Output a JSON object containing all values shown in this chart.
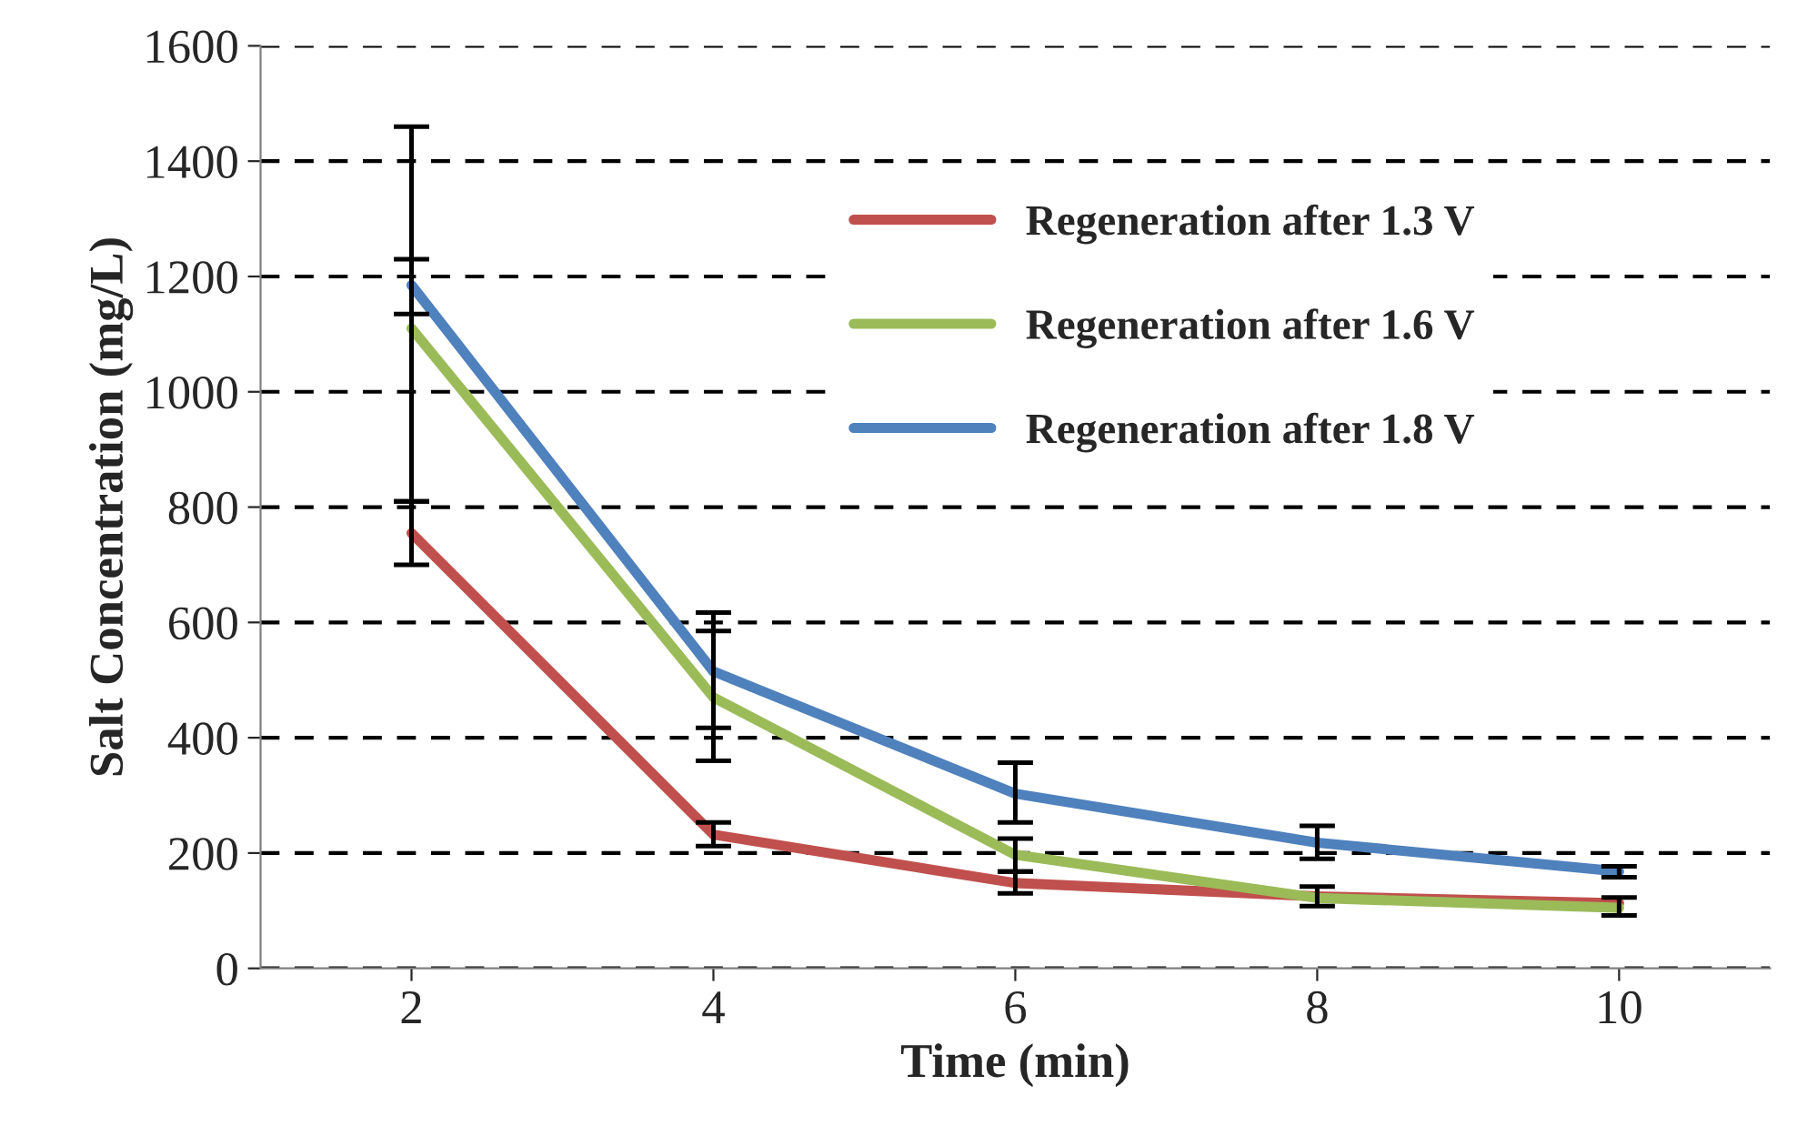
{
  "chart_data": {
    "type": "line",
    "xlabel": "Time (min)",
    "ylabel": "Salt Concentration (mg/L)",
    "categories": [
      "2",
      "4",
      "6",
      "8",
      "10"
    ],
    "series": [
      {
        "name": "Regeneration after 1.3 V",
        "color": "#c0504d",
        "values": [
          755,
          232,
          148,
          125,
          113
        ],
        "errors": [
          [
            700,
            810
          ],
          [
            212,
            253
          ],
          [
            130,
            168
          ],
          null,
          null
        ]
      },
      {
        "name": "Regeneration after 1.6 V",
        "color": "#9bbb59",
        "values": [
          1110,
          470,
          197,
          122,
          105
        ],
        "errors": [
          [
            810,
            1460
          ],
          [
            360,
            585
          ],
          [
            168,
            225
          ],
          [
            108,
            142
          ],
          [
            92,
            123
          ]
        ]
      },
      {
        "name": "Regeneration after 1.8 V",
        "color": "#4f81bd",
        "values": [
          1185,
          515,
          303,
          218,
          168
        ],
        "errors": [
          [
            1135,
            1230
          ],
          [
            417,
            617
          ],
          [
            253,
            357
          ],
          [
            190,
            247
          ],
          [
            158,
            177
          ]
        ]
      }
    ],
    "ylim": [
      0,
      1600
    ],
    "yticks": [
      0,
      200,
      400,
      600,
      800,
      1000,
      1200,
      1400,
      1600
    ],
    "grid": "y",
    "legend": "top right",
    "marker": "none",
    "line_style": "solid"
  }
}
